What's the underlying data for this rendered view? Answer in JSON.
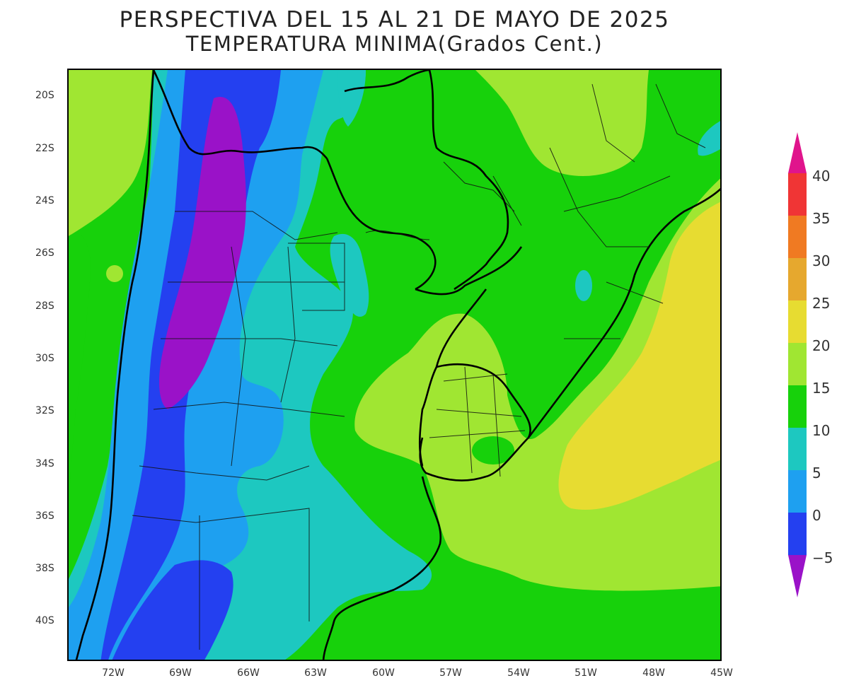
{
  "title": {
    "line1": "PERSPECTIVA DEL 15 AL 21 DE MAYO DE 2025",
    "line2": "TEMPERATURA MINIMA(Grados Cent.)"
  },
  "axes": {
    "lat_labels": [
      "20S",
      "22S",
      "24S",
      "26S",
      "28S",
      "30S",
      "32S",
      "34S",
      "36S",
      "38S",
      "40S"
    ],
    "lon_labels": [
      "72W",
      "69W",
      "66W",
      "63W",
      "60W",
      "57W",
      "54W",
      "51W",
      "48W",
      "45W"
    ]
  },
  "legend": {
    "labels": [
      "40",
      "35",
      "30",
      "25",
      "20",
      "15",
      "10",
      "5",
      "0",
      "−5"
    ],
    "colors": {
      "above_40": "#e0148c",
      "35_40": "#f03535",
      "30_35": "#f07a22",
      "25_30": "#e6a82e",
      "20_25": "#e7dc31",
      "15_20": "#a0e632",
      "10_15": "#17d10b",
      "5_10": "#1dc8c0",
      "0_5": "#1ea0f0",
      "m5_0": "#2440f0",
      "below_m5": "#9a12c8"
    }
  }
}
